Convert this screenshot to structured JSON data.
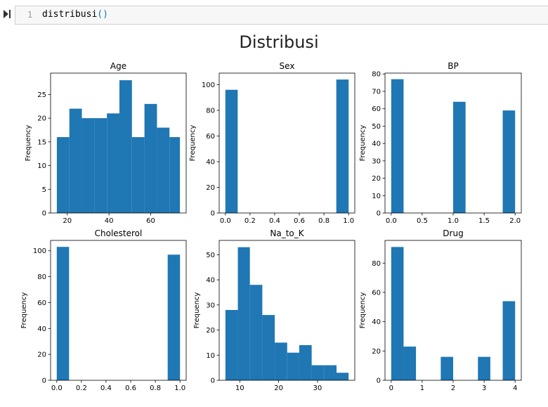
{
  "cell": {
    "line_number": "1",
    "code_name": "distribusi",
    "code_parens": "()"
  },
  "figure": {
    "title": "Distribusi"
  },
  "colors": {
    "bar": "#1f77b4",
    "cell_bg": "#f7f7f7",
    "cell_border": "#cfcfcf"
  },
  "icons": {
    "run": "step-forward-icon"
  },
  "chart_data": [
    {
      "type": "bar",
      "title": "Age",
      "ylabel": "Frequency",
      "bin_edges": [
        15,
        21,
        27,
        33,
        39,
        45,
        51,
        57,
        63,
        69,
        74
      ],
      "values": [
        16,
        22,
        20,
        20,
        21,
        28,
        16,
        23,
        18,
        16
      ],
      "xlim": [
        12,
        77
      ],
      "ylim": [
        0,
        29.5
      ],
      "xticks": [
        20,
        40,
        60
      ],
      "yticks": [
        0,
        5,
        10,
        15,
        20,
        25
      ]
    },
    {
      "type": "bar",
      "title": "Sex",
      "ylabel": "Frequency",
      "bin_edges": [
        0,
        0.1,
        0.2,
        0.3,
        0.4,
        0.5,
        0.6,
        0.7,
        0.8,
        0.9,
        1.0
      ],
      "values": [
        96,
        0,
        0,
        0,
        0,
        0,
        0,
        0,
        0,
        104
      ],
      "xlim": [
        -0.05,
        1.05
      ],
      "ylim": [
        0,
        109
      ],
      "xticks": [
        0.0,
        0.2,
        0.4,
        0.6,
        0.8,
        1.0
      ],
      "yticks": [
        0,
        20,
        40,
        60,
        80,
        100
      ]
    },
    {
      "type": "bar",
      "title": "BP",
      "ylabel": "Frequency",
      "bin_edges": [
        0,
        0.2,
        0.4,
        0.6,
        0.8,
        1.0,
        1.2,
        1.4,
        1.6,
        1.8,
        2.0
      ],
      "values": [
        77,
        0,
        0,
        0,
        0,
        64,
        0,
        0,
        0,
        59
      ],
      "xlim": [
        -0.1,
        2.1
      ],
      "ylim": [
        0,
        80.5
      ],
      "xticks": [
        0.0,
        0.5,
        1.0,
        1.5,
        2.0
      ],
      "yticks": [
        0,
        10,
        20,
        30,
        40,
        50,
        60,
        70,
        80
      ]
    },
    {
      "type": "bar",
      "title": "Cholesterol",
      "ylabel": "Frequency",
      "bin_edges": [
        0,
        0.1,
        0.2,
        0.3,
        0.4,
        0.5,
        0.6,
        0.7,
        0.8,
        0.9,
        1.0
      ],
      "values": [
        103,
        0,
        0,
        0,
        0,
        0,
        0,
        0,
        0,
        97
      ],
      "xlim": [
        -0.05,
        1.05
      ],
      "ylim": [
        0,
        108
      ],
      "xticks": [
        0.0,
        0.2,
        0.4,
        0.6,
        0.8,
        1.0
      ],
      "yticks": [
        0,
        20,
        40,
        60,
        80,
        100
      ]
    },
    {
      "type": "bar",
      "title": "Na_to_K",
      "ylabel": "Frequency",
      "bin_edges": [
        6.3,
        9.5,
        12.6,
        15.8,
        19.0,
        22.2,
        25.3,
        28.5,
        31.7,
        34.9,
        38.0
      ],
      "values": [
        28,
        53,
        38,
        26,
        15,
        11,
        14,
        6,
        6,
        3
      ],
      "xlim": [
        4.7,
        39.6
      ],
      "ylim": [
        0,
        55.7
      ],
      "xticks": [
        10,
        20,
        30
      ],
      "yticks": [
        0,
        10,
        20,
        30,
        40,
        50
      ]
    },
    {
      "type": "bar",
      "title": "Drug",
      "ylabel": "Frequency",
      "bin_edges": [
        0,
        0.4,
        0.8,
        1.2,
        1.6,
        2.0,
        2.4,
        2.8,
        3.2,
        3.6,
        4.0
      ],
      "values": [
        91,
        23,
        0,
        0,
        16,
        0,
        0,
        16,
        0,
        54
      ],
      "xlim": [
        -0.2,
        4.2
      ],
      "ylim": [
        0,
        95.5
      ],
      "xticks": [
        0,
        1,
        2,
        3,
        4
      ],
      "yticks": [
        0,
        20,
        40,
        60,
        80
      ]
    }
  ]
}
